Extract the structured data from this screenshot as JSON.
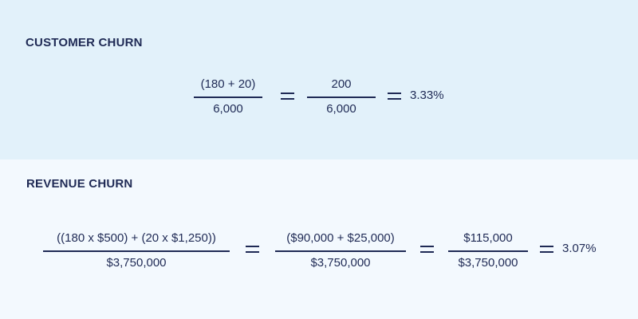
{
  "customer_churn": {
    "heading": "CUSTOMER CHURN",
    "fraction_1": {
      "numerator": "(180 + 20)",
      "denominator": "6,000"
    },
    "fraction_2": {
      "numerator": "200",
      "denominator": "6,000"
    },
    "result": "3.33%"
  },
  "revenue_churn": {
    "heading": "REVENUE CHURN",
    "fraction_1": {
      "numerator": "((180 x $500) + (20 x $1,250))",
      "denominator": "$3,750,000"
    },
    "fraction_2": {
      "numerator": "($90,000 + $25,000)",
      "denominator": "$3,750,000"
    },
    "fraction_3": {
      "numerator": "$115,000",
      "denominator": "$3,750,000"
    },
    "result": "3.07%"
  }
}
